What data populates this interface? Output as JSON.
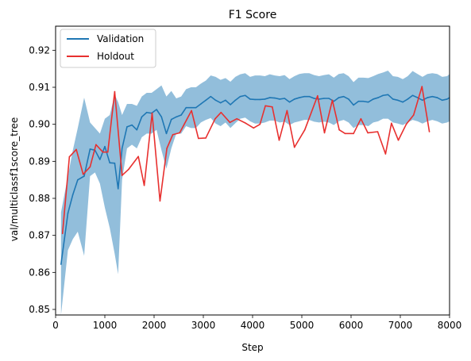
{
  "chart_data": {
    "type": "line",
    "title": "F1 Score",
    "xlabel": "Step",
    "ylabel": "val/multiclassf1score_tree",
    "xlim": [
      0,
      8000
    ],
    "ylim": [
      0.8485,
      0.9265
    ],
    "xticks": [
      0,
      1000,
      2000,
      3000,
      4000,
      5000,
      6000,
      7000,
      8000
    ],
    "yticks": [
      0.85,
      0.86,
      0.87,
      0.88,
      0.89,
      0.9,
      0.91,
      0.92
    ],
    "grid": false,
    "legend_position": "top-left",
    "series": [
      {
        "name": "Validation",
        "color": "#1f77b4",
        "band_color": "#7fb3d5",
        "x": [
          110,
          250,
          350,
          450,
          580,
          700,
          800,
          900,
          1000,
          1100,
          1200,
          1270,
          1350,
          1450,
          1550,
          1650,
          1750,
          1850,
          1950,
          2050,
          2150,
          2250,
          2350,
          2450,
          2550,
          2650,
          2750,
          2850,
          2950,
          3050,
          3150,
          3250,
          3350,
          3450,
          3550,
          3650,
          3750,
          3850,
          3950,
          4050,
          4150,
          4250,
          4350,
          4450,
          4550,
          4650,
          4750,
          4850,
          4950,
          5050,
          5150,
          5250,
          5350,
          5450,
          5550,
          5650,
          5750,
          5850,
          5950,
          6050,
          6150,
          6250,
          6350,
          6450,
          6550,
          6650,
          6750,
          6850,
          6950,
          7050,
          7150,
          7250,
          7350,
          7450,
          7550,
          7650,
          7750,
          7850,
          7950,
          8000
        ],
        "values": [
          0.8622,
          0.876,
          0.881,
          0.885,
          0.886,
          0.8933,
          0.893,
          0.8905,
          0.894,
          0.8896,
          0.8895,
          0.8826,
          0.8935,
          0.8993,
          0.8998,
          0.8985,
          0.902,
          0.9032,
          0.903,
          0.904,
          0.902,
          0.8975,
          0.9013,
          0.902,
          0.9025,
          0.9045,
          0.9045,
          0.9045,
          0.9055,
          0.9065,
          0.9075,
          0.9065,
          0.9058,
          0.9065,
          0.9053,
          0.9065,
          0.9075,
          0.9078,
          0.9068,
          0.9067,
          0.9067,
          0.9068,
          0.9072,
          0.9071,
          0.9068,
          0.907,
          0.906,
          0.9068,
          0.9072,
          0.9075,
          0.9075,
          0.907,
          0.9068,
          0.907,
          0.907,
          0.9062,
          0.9072,
          0.9075,
          0.9068,
          0.9052,
          0.9062,
          0.9062,
          0.906,
          0.9068,
          0.9072,
          0.9078,
          0.908,
          0.9068,
          0.9065,
          0.906,
          0.9068,
          0.9078,
          0.9072,
          0.9065,
          0.9072,
          0.9075,
          0.9072,
          0.9065,
          0.9068,
          0.9072
        ],
        "lower": [
          0.8485,
          0.866,
          0.869,
          0.871,
          0.8645,
          0.886,
          0.887,
          0.884,
          0.8775,
          0.872,
          0.865,
          0.8595,
          0.885,
          0.8935,
          0.8945,
          0.8935,
          0.8965,
          0.8975,
          0.8975,
          0.8985,
          0.893,
          0.888,
          0.8935,
          0.8975,
          0.8975,
          0.8995,
          0.899,
          0.899,
          0.9005,
          0.9012,
          0.9017,
          0.9002,
          0.8995,
          0.9005,
          0.899,
          0.9003,
          0.9015,
          0.9018,
          0.9008,
          0.9002,
          0.9002,
          0.9005,
          0.901,
          0.901,
          0.9005,
          0.9007,
          0.8998,
          0.9005,
          0.9008,
          0.9012,
          0.9012,
          0.9007,
          0.9005,
          0.9007,
          0.9005,
          0.8998,
          0.9008,
          0.9012,
          0.9005,
          0.899,
          0.8998,
          0.8998,
          0.8995,
          0.9005,
          0.9008,
          0.9015,
          0.9015,
          0.9005,
          0.9002,
          0.8998,
          0.9005,
          0.9012,
          0.9008,
          0.9002,
          0.9008,
          0.9012,
          0.9008,
          0.9002,
          0.9005,
          0.9008
        ],
        "upper": [
          0.8762,
          0.886,
          0.893,
          0.899,
          0.9072,
          0.9005,
          0.899,
          0.8975,
          0.9015,
          0.9025,
          0.908,
          0.906,
          0.9025,
          0.9055,
          0.9055,
          0.905,
          0.9075,
          0.9085,
          0.9085,
          0.9095,
          0.9105,
          0.9075,
          0.909,
          0.907,
          0.9075,
          0.9095,
          0.91,
          0.91,
          0.911,
          0.9118,
          0.9132,
          0.9128,
          0.912,
          0.9125,
          0.9115,
          0.9128,
          0.9135,
          0.9138,
          0.9128,
          0.9132,
          0.9132,
          0.913,
          0.9135,
          0.9132,
          0.913,
          0.9133,
          0.9122,
          0.913,
          0.9136,
          0.9138,
          0.9138,
          0.9133,
          0.913,
          0.9133,
          0.9135,
          0.9126,
          0.9136,
          0.9138,
          0.913,
          0.9114,
          0.9126,
          0.9126,
          0.9125,
          0.913,
          0.9136,
          0.914,
          0.9145,
          0.913,
          0.9128,
          0.9122,
          0.913,
          0.9144,
          0.9136,
          0.9128,
          0.9136,
          0.9138,
          0.9136,
          0.9128,
          0.913,
          0.9136
        ]
      },
      {
        "name": "Holdout",
        "color": "#e8302f",
        "x": [
          140,
          280,
          420,
          560,
          700,
          820,
          960,
          1060,
          1200,
          1350,
          1480,
          1680,
          1800,
          1960,
          2120,
          2260,
          2380,
          2520,
          2760,
          2900,
          3050,
          3240,
          3360,
          3540,
          3680,
          3860,
          4020,
          4150,
          4260,
          4400,
          4540,
          4700,
          4850,
          5060,
          5320,
          5460,
          5620,
          5760,
          5880,
          6050,
          6200,
          6340,
          6540,
          6700,
          6820,
          6960,
          7120,
          7270,
          7440,
          7590
        ],
        "values": [
          0.8705,
          0.8912,
          0.8932,
          0.8865,
          0.8885,
          0.8945,
          0.8925,
          0.8925,
          0.9088,
          0.8862,
          0.8878,
          0.8913,
          0.8835,
          0.903,
          0.8793,
          0.8935,
          0.8972,
          0.8977,
          0.9037,
          0.8962,
          0.8963,
          0.9015,
          0.9032,
          0.9005,
          0.9015,
          0.9003,
          0.899,
          0.9,
          0.905,
          0.9047,
          0.8957,
          0.9037,
          0.8938,
          0.8985,
          0.9077,
          0.8977,
          0.9065,
          0.8985,
          0.8975,
          0.8975,
          0.9015,
          0.8977,
          0.898,
          0.892,
          0.9003,
          0.8957,
          0.9,
          0.9025,
          0.9102,
          0.898
        ]
      }
    ]
  }
}
